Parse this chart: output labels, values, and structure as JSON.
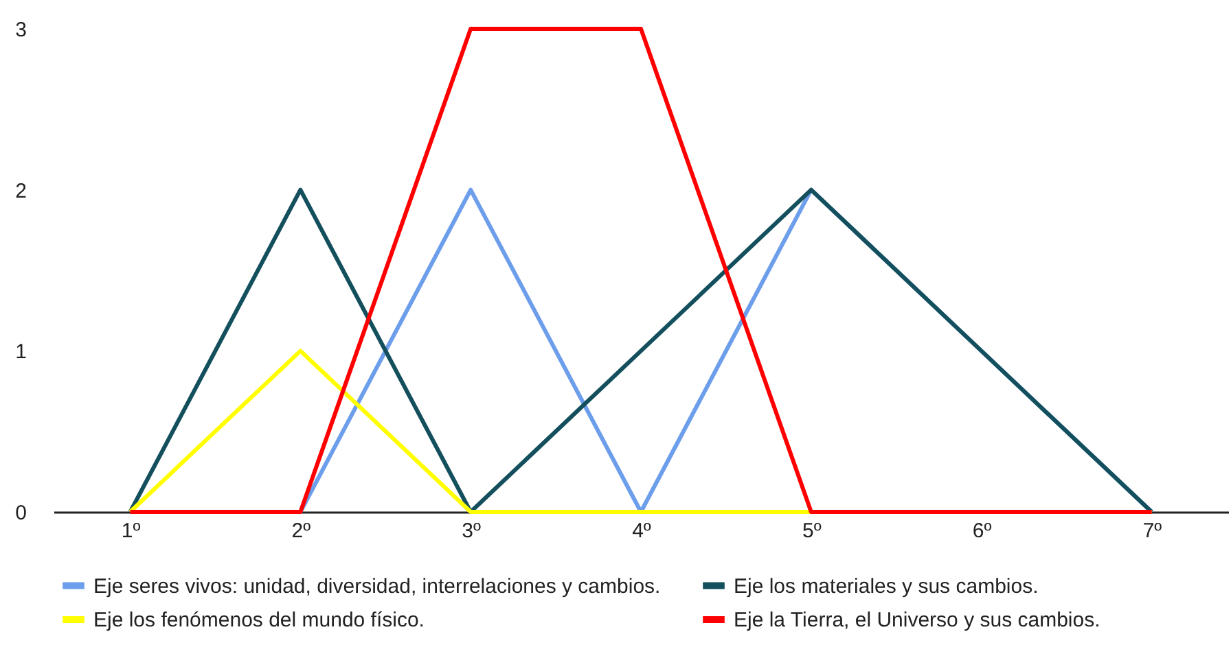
{
  "chart_data": {
    "type": "line",
    "categories": [
      "1º",
      "2º",
      "3º",
      "4º",
      "5º",
      "6º",
      "7º"
    ],
    "ylim": [
      0,
      3
    ],
    "yticks": [
      0,
      1,
      2,
      3
    ],
    "grid": false,
    "legend": "bottom",
    "line_style": "solid",
    "marker": "none",
    "series": [
      {
        "name": "Eje seres vivos: unidad, diversidad, interrelaciones y cambios.",
        "color": "#6d9eeb",
        "values": [
          0,
          0,
          2,
          0,
          2,
          1,
          0
        ]
      },
      {
        "name": "Eje los materiales y sus cambios.",
        "color": "#134f5c",
        "values": [
          0,
          2,
          0,
          1,
          2,
          1,
          0
        ]
      },
      {
        "name": "Eje los fenómenos del mundo físico.",
        "color": "#ffff00",
        "values": [
          0,
          1,
          0,
          0,
          0,
          0,
          0
        ]
      },
      {
        "name": "Eje la Tierra, el Universo y sus cambios.",
        "color": "#ff0000",
        "values": [
          0,
          0,
          3,
          3,
          0,
          0,
          0
        ]
      }
    ]
  }
}
